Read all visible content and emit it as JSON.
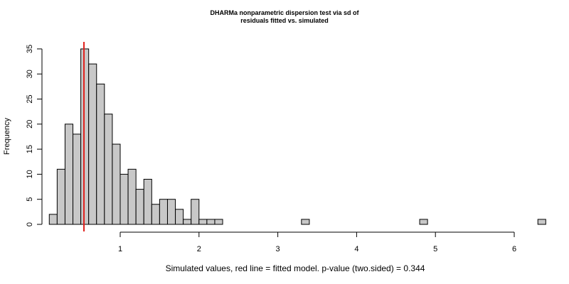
{
  "chart_data": {
    "type": "bar",
    "title": "DHARMa nonparametric dispersion test via sd of residuals fitted vs. simulated",
    "title_lines": [
      "DHARMa nonparametric dispersion test via sd of",
      "residuals fitted vs. simulated"
    ],
    "xlabel": "Simulated values, red line = fitted model. p-value (two.sided) = 0.344",
    "ylabel": "Frequency",
    "bin_width": 0.1,
    "bin_start": 0.1,
    "frequencies": [
      2,
      11,
      20,
      18,
      35,
      32,
      28,
      22,
      16,
      10,
      11,
      7,
      9,
      4,
      5,
      5,
      3,
      1,
      5,
      1,
      1,
      1,
      0,
      0,
      0,
      0,
      0,
      0,
      0,
      0,
      0,
      0,
      1,
      0,
      0,
      0,
      0,
      0,
      0,
      0,
      0,
      0,
      0,
      0,
      0,
      0,
      0,
      1,
      0,
      0,
      0,
      0,
      0,
      0,
      0,
      0,
      0,
      0,
      0,
      0,
      0,
      0,
      1
    ],
    "xlim": [
      0.1,
      6.2
    ],
    "ylim": [
      0,
      35
    ],
    "x_ticks": [
      "1",
      "2",
      "3",
      "4",
      "5",
      "6"
    ],
    "x_tick_values": [
      1,
      2,
      3,
      4,
      5,
      6
    ],
    "y_ticks": [
      "0",
      "5",
      "10",
      "15",
      "20",
      "25",
      "30",
      "35"
    ],
    "y_tick_values": [
      0,
      5,
      10,
      15,
      20,
      25,
      30,
      35
    ],
    "observed_value": 0.54,
    "bar_fill": "#c8c8c8",
    "line_color": "#e0201c"
  }
}
